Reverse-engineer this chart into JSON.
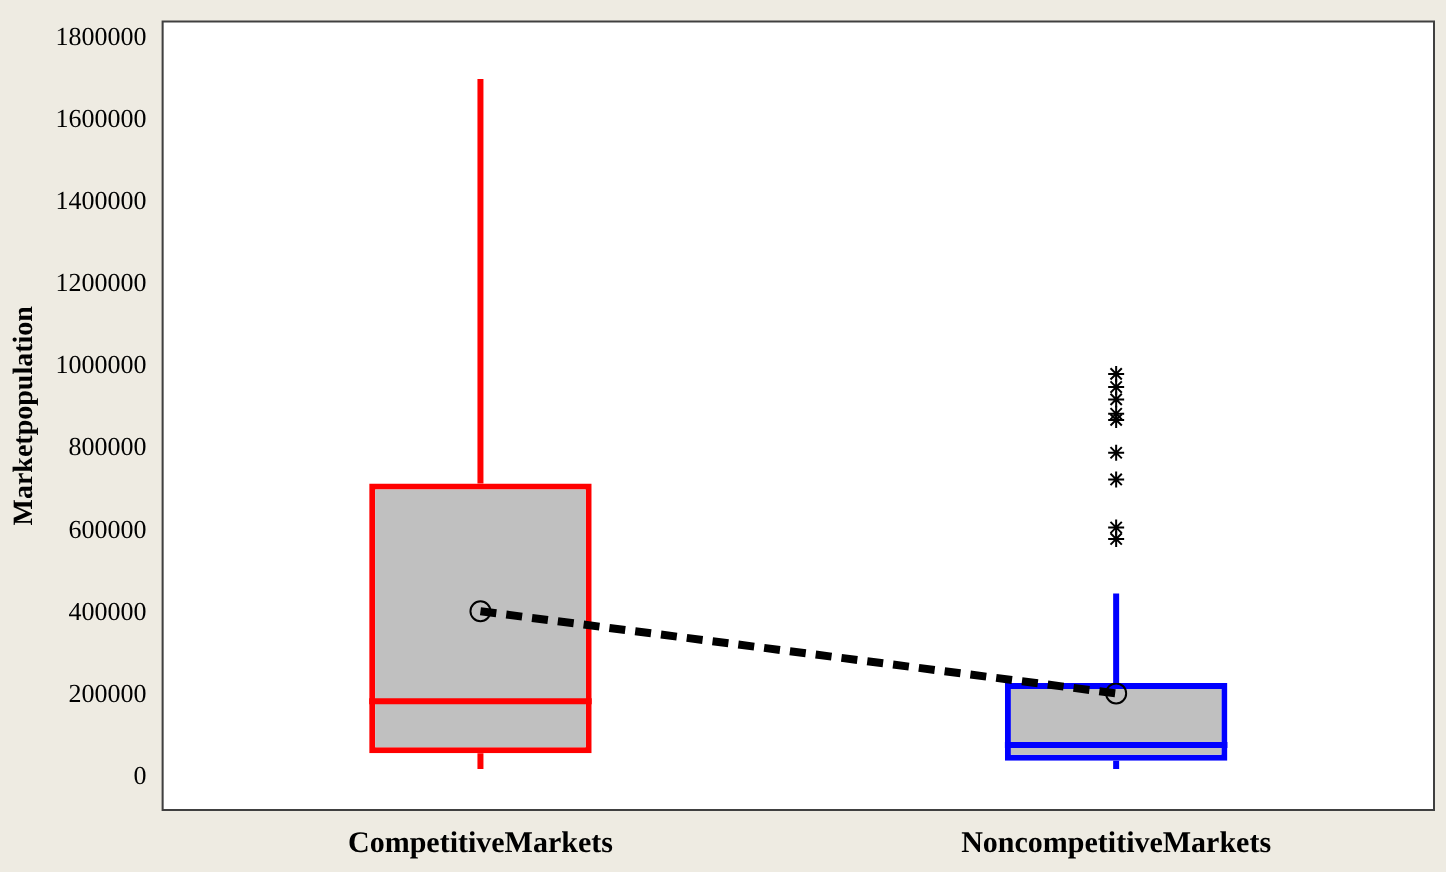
{
  "chart_data": {
    "type": "box",
    "ylabel": "Marketpopulation",
    "categories": [
      "CompetitiveMarkets",
      "NoncompetitiveMarkets"
    ],
    "colors": [
      "#ff0000",
      "#0000ff"
    ],
    "boxes": [
      {
        "low": 20000,
        "q1": 58000,
        "median": 185000,
        "q3": 715000,
        "high": 1700000
      },
      {
        "low": 20000,
        "q1": 40000,
        "median": 78000,
        "q3": 229000,
        "high": 447000,
        "outliers": [
          982000,
          950000,
          920000,
          885000,
          870000,
          790000,
          725000,
          608000,
          580000
        ]
      }
    ],
    "series": [
      {
        "type": "line",
        "x": [
          "CompetitiveMarkets",
          "NoncompetitiveMarkets"
        ],
        "values": [
          404000,
          204000
        ],
        "color": "#000000",
        "line_style": "dashed",
        "marker": "circle"
      }
    ],
    "ylim": [
      -80000,
      1840000
    ],
    "yticks": [
      0,
      200000,
      400000,
      600000,
      800000,
      1000000,
      1200000,
      1400000,
      1600000,
      1800000
    ],
    "grid": false,
    "legend": false
  }
}
